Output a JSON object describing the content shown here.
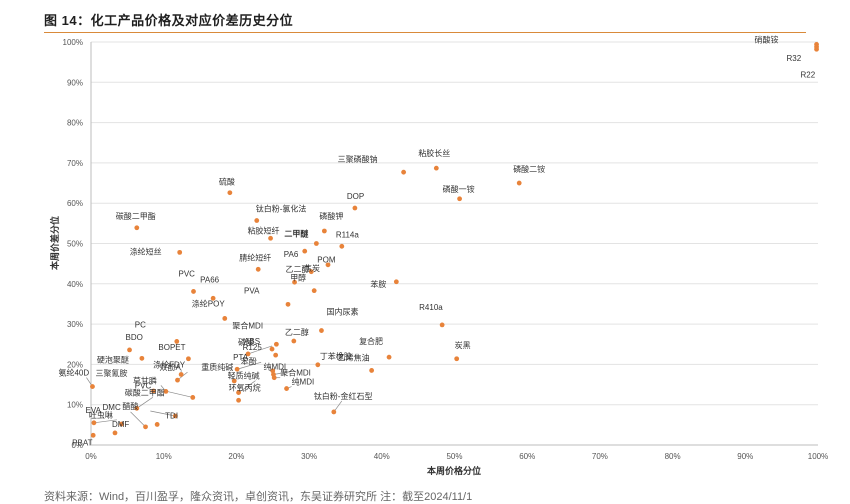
{
  "figure": {
    "title": "图 14：化工产品价格及对应价差历史分位",
    "source": "资料来源：Wind，百川盈孚，隆众资讯，卓创资讯，东吴证券研究所   注：截至2024/11/1"
  },
  "chart_data": {
    "type": "scatter",
    "title": "",
    "xlabel": "本周价格分位",
    "ylabel": "本周价差分位",
    "xlim": [
      0,
      1
    ],
    "ylim": [
      0,
      1
    ],
    "x_ticks": [
      "0%",
      "10%",
      "20%",
      "30%",
      "40%",
      "50%",
      "60%",
      "70%",
      "80%",
      "90%",
      "100%"
    ],
    "y_ticks": [
      "0%",
      "10%",
      "20%",
      "30%",
      "40%",
      "50%",
      "60%",
      "70%",
      "80%",
      "90%",
      "100%"
    ],
    "grid": "horizontal",
    "marker_color": "#e8833a",
    "points": [
      {
        "label": "硝酸铵",
        "x": 0.998,
        "y": 0.994
      },
      {
        "label": "R32",
        "x": 0.998,
        "y": 0.988
      },
      {
        "label": "R22",
        "x": 0.998,
        "y": 0.982
      },
      {
        "label": "三聚磷酸钠",
        "x": 0.43,
        "y": 0.677
      },
      {
        "label": "粘胶长丝",
        "x": 0.475,
        "y": 0.687
      },
      {
        "label": "磷酸二铵",
        "x": 0.589,
        "y": 0.65
      },
      {
        "label": "磷酸一铵",
        "x": 0.507,
        "y": 0.611
      },
      {
        "label": "硫酸",
        "x": 0.191,
        "y": 0.626
      },
      {
        "label": "钛白粉-氯化法",
        "x": 0.228,
        "y": 0.557
      },
      {
        "label": "DOP",
        "x": 0.363,
        "y": 0.588
      },
      {
        "label": "磷酸钾",
        "x": 0.321,
        "y": 0.531
      },
      {
        "label": "碳酸二甲酯",
        "x": 0.063,
        "y": 0.539
      },
      {
        "label": "粘胶短纤",
        "x": 0.247,
        "y": 0.513
      },
      {
        "label": "二甲醚",
        "x": 0.31,
        "y": 0.5
      },
      {
        "label": "R114a",
        "x": 0.345,
        "y": 0.493
      },
      {
        "label": "PA6",
        "x": 0.294,
        "y": 0.481
      },
      {
        "label": "焦炭",
        "x": 0.326,
        "y": 0.447
      },
      {
        "label": "涤纶短丝",
        "x": 0.122,
        "y": 0.478
      },
      {
        "label": "腈纶短纤",
        "x": 0.23,
        "y": 0.436
      },
      {
        "label": "POM",
        "x": 0.303,
        "y": 0.43
      },
      {
        "label": "苯胺",
        "x": 0.42,
        "y": 0.405
      },
      {
        "label": "乙二醇",
        "x": 0.28,
        "y": 0.404
      },
      {
        "label": "甲醇",
        "x": 0.307,
        "y": 0.383
      },
      {
        "label": "PVC",
        "x": 0.141,
        "y": 0.381
      },
      {
        "label": "PA66",
        "x": 0.168,
        "y": 0.364
      },
      {
        "label": "PVA",
        "x": 0.271,
        "y": 0.349
      },
      {
        "label": "涤纶POY",
        "x": 0.184,
        "y": 0.314
      },
      {
        "label": "国内尿素",
        "x": 0.317,
        "y": 0.284
      },
      {
        "label": "R410a",
        "x": 0.483,
        "y": 0.298
      },
      {
        "label": "PC",
        "x": 0.118,
        "y": 0.257
      },
      {
        "label": "BDO",
        "x": 0.053,
        "y": 0.236
      },
      {
        "label": "硬泡聚醚",
        "x": 0.07,
        "y": 0.215
      },
      {
        "label": "BOPET",
        "x": 0.134,
        "y": 0.214
      },
      {
        "label": "聚合MDI",
        "x": 0.255,
        "y": 0.25
      },
      {
        "label": "乙二醇",
        "x": 0.279,
        "y": 0.258
      },
      {
        "label": "磷酸",
        "x": 0.249,
        "y": 0.238
      },
      {
        "label": "R125",
        "x": 0.254,
        "y": 0.223
      },
      {
        "label": "复合肥",
        "x": 0.41,
        "y": 0.218
      },
      {
        "label": "炭黑",
        "x": 0.503,
        "y": 0.214
      },
      {
        "label": "丁苯橡胶",
        "x": 0.312,
        "y": 0.199
      },
      {
        "label": "乙烯焦油",
        "x": 0.386,
        "y": 0.185
      },
      {
        "label": "ABS",
        "x": 0.216,
        "y": 0.226
      },
      {
        "label": "PTA",
        "x": 0.201,
        "y": 0.188
      },
      {
        "label": "涤纶FDY",
        "x": 0.124,
        "y": 0.175
      },
      {
        "label": "双酚A",
        "x": 0.119,
        "y": 0.161
      },
      {
        "label": "重质纯碱",
        "x": 0.197,
        "y": 0.159
      },
      {
        "label": "纯MDI",
        "x": 0.251,
        "y": 0.175
      },
      {
        "label": "聚合MDI",
        "x": 0.252,
        "y": 0.167
      },
      {
        "label": "苯酚",
        "x": 0.25,
        "y": 0.184
      },
      {
        "label": "氨纶40D",
        "x": 0.002,
        "y": 0.145
      },
      {
        "label": "三聚氰胺",
        "x": 0.086,
        "y": 0.134
      },
      {
        "label": "草甘膦",
        "x": 0.103,
        "y": 0.133
      },
      {
        "label": "碳酸二甲酯",
        "x": 0.063,
        "y": 0.091
      },
      {
        "label": "PVC",
        "x": 0.14,
        "y": 0.118
      },
      {
        "label": "纯MDI",
        "x": 0.269,
        "y": 0.14
      },
      {
        "label": "轻质纯碱",
        "x": 0.203,
        "y": 0.13
      },
      {
        "label": "环氧丙烷",
        "x": 0.203,
        "y": 0.111
      },
      {
        "label": "醋酸",
        "x": 0.116,
        "y": 0.072
      },
      {
        "label": "钛白粉-金红石型",
        "x": 0.334,
        "y": 0.082
      },
      {
        "label": "吐虫啉",
        "x": 0.004,
        "y": 0.055
      },
      {
        "label": "EVA",
        "x": 0.042,
        "y": 0.052
      },
      {
        "label": "DMF",
        "x": 0.033,
        "y": 0.03
      },
      {
        "label": "DMC",
        "x": 0.075,
        "y": 0.045
      },
      {
        "label": "TDI",
        "x": 0.091,
        "y": 0.051
      },
      {
        "label": "PBAT",
        "x": 0.003,
        "y": 0.024
      }
    ]
  }
}
